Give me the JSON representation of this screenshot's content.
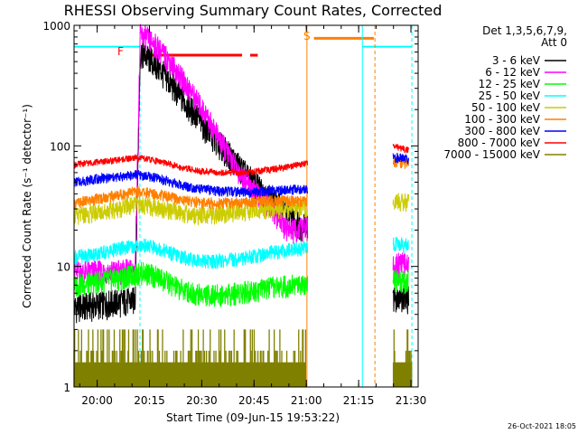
{
  "chart_data": {
    "type": "line",
    "title": "RHESSI Observing Summary Count Rates, Corrected",
    "xlabel": "Start Time (09-Jun-15 19:53:22)",
    "ylabel": "Corrected Count Rate (s⁻¹ detector⁻¹)",
    "yscale": "log",
    "ylim": [
      1,
      1000
    ],
    "xlim_minutes_after_start": [
      0,
      98.7
    ],
    "x_tick_labels": [
      "20:00",
      "20:15",
      "20:30",
      "20:45",
      "21:00",
      "21:15",
      "21:30"
    ],
    "x_tick_minutes": [
      6.63,
      21.63,
      36.63,
      51.63,
      66.63,
      81.63,
      96.63
    ],
    "y_tick_labels": [
      "1",
      "10",
      "100",
      "1000"
    ],
    "y_tick_values": [
      1,
      10,
      100,
      1000
    ],
    "legend_header_line1": "Det 1,3,5,6,7,9,",
    "legend_header_line2": "Att 0",
    "footer_date": "26-Oct-2021 18:05",
    "flag_labels": {
      "flare": "F",
      "saa": "S"
    },
    "series": [
      {
        "name": "3 - 6 keV",
        "color": "#000000",
        "points": [
          [
            0,
            4.6
          ],
          [
            5,
            4.8
          ],
          [
            10,
            5.0
          ],
          [
            15,
            5.2
          ],
          [
            17.5,
            5.3
          ],
          [
            19,
            600
          ],
          [
            22,
            520
          ],
          [
            25,
            420
          ],
          [
            30,
            270
          ],
          [
            35,
            180
          ],
          [
            40,
            118
          ],
          [
            45,
            82
          ],
          [
            50,
            55
          ],
          [
            55,
            40
          ],
          [
            58,
            34
          ],
          [
            62,
            26
          ],
          [
            65,
            22
          ],
          [
            67,
            23
          ]
        ],
        "points_after_gap": [
          [
            91.5,
            5.4
          ],
          [
            94,
            5.6
          ],
          [
            96,
            5.5
          ]
        ]
      },
      {
        "name": "6 - 12 keV",
        "color": "#ff00ff",
        "points": [
          [
            0,
            9.0
          ],
          [
            10,
            9.1
          ],
          [
            17.5,
            9.3
          ],
          [
            19,
            830
          ],
          [
            21,
            790
          ],
          [
            24,
            660
          ],
          [
            28,
            480
          ],
          [
            33,
            300
          ],
          [
            38,
            180
          ],
          [
            42,
            110
          ],
          [
            46,
            70
          ],
          [
            50,
            48
          ],
          [
            53,
            38
          ],
          [
            57,
            30
          ],
          [
            60,
            22
          ],
          [
            63,
            20
          ],
          [
            67,
            21
          ]
        ],
        "points_after_gap": [
          [
            91.5,
            10.2
          ],
          [
            93,
            10.6
          ],
          [
            96,
            10.4
          ]
        ]
      },
      {
        "name": "12 - 25 keV",
        "color": "#00ff00",
        "points": [
          [
            0,
            7.0
          ],
          [
            8,
            7.6
          ],
          [
            15,
            8.2
          ],
          [
            20,
            9.0
          ],
          [
            25,
            8.0
          ],
          [
            30,
            6.6
          ],
          [
            35,
            6.0
          ],
          [
            40,
            5.8
          ],
          [
            45,
            6.0
          ],
          [
            50,
            6.3
          ],
          [
            55,
            6.6
          ],
          [
            60,
            6.9
          ],
          [
            67,
            7.4
          ]
        ],
        "points_after_gap": [
          [
            91.5,
            7.8
          ],
          [
            96,
            7.6
          ]
        ]
      },
      {
        "name": "25 - 50 keV",
        "color": "#00ffff",
        "points": [
          [
            0,
            12.0
          ],
          [
            8,
            13.0
          ],
          [
            15,
            14.5
          ],
          [
            20,
            15.0
          ],
          [
            25,
            14.0
          ],
          [
            30,
            12.2
          ],
          [
            35,
            11.3
          ],
          [
            40,
            11.0
          ],
          [
            45,
            11.4
          ],
          [
            50,
            12.0
          ],
          [
            55,
            12.8
          ],
          [
            60,
            13.5
          ],
          [
            67,
            14.5
          ]
        ],
        "points_after_gap": [
          [
            91.5,
            15.5
          ],
          [
            96,
            15.0
          ]
        ]
      },
      {
        "name": "50 - 100 keV",
        "color": "#cccc00",
        "points": [
          [
            0,
            26
          ],
          [
            6,
            28
          ],
          [
            12,
            30
          ],
          [
            18,
            33
          ],
          [
            24,
            31
          ],
          [
            30,
            28
          ],
          [
            36,
            26.5
          ],
          [
            42,
            27
          ],
          [
            48,
            28.5
          ],
          [
            54,
            29.5
          ],
          [
            60,
            30
          ],
          [
            67,
            30.5
          ]
        ],
        "points_after_gap": [
          [
            91.5,
            35
          ],
          [
            96,
            34
          ]
        ]
      },
      {
        "name": "100 - 300 keV",
        "color": "#ff8000",
        "points": [
          [
            0,
            33
          ],
          [
            6,
            36
          ],
          [
            12,
            39
          ],
          [
            18,
            42
          ],
          [
            24,
            40
          ],
          [
            30,
            36
          ],
          [
            36,
            34
          ],
          [
            42,
            33.5
          ],
          [
            48,
            34
          ],
          [
            54,
            35
          ],
          [
            60,
            35
          ],
          [
            67,
            35
          ]
        ],
        "points_after_gap": [
          [
            91.5,
            74
          ],
          [
            96,
            72
          ]
        ]
      },
      {
        "name": "300 - 800 keV",
        "color": "#0000ff",
        "points": [
          [
            0,
            50
          ],
          [
            6,
            53
          ],
          [
            12,
            55
          ],
          [
            18,
            58
          ],
          [
            24,
            54
          ],
          [
            30,
            48
          ],
          [
            36,
            44
          ],
          [
            42,
            42
          ],
          [
            48,
            41.5
          ],
          [
            54,
            42
          ],
          [
            60,
            43
          ],
          [
            67,
            44
          ]
        ],
        "points_after_gap": [
          [
            91.5,
            80
          ],
          [
            96,
            78
          ]
        ]
      },
      {
        "name": "800 - 7000 keV",
        "color": "#ff0000",
        "points": [
          [
            0,
            70
          ],
          [
            6,
            73
          ],
          [
            12,
            76
          ],
          [
            18,
            80
          ],
          [
            24,
            75
          ],
          [
            30,
            67
          ],
          [
            36,
            62
          ],
          [
            42,
            60
          ],
          [
            48,
            60
          ],
          [
            54,
            62
          ],
          [
            60,
            66
          ],
          [
            67,
            72
          ]
        ],
        "points_after_gap": [
          [
            91.5,
            100
          ],
          [
            96,
            92
          ]
        ]
      },
      {
        "name": "7000 - 15000 keV",
        "color": "#808000",
        "points": [],
        "points_after_gap": []
      }
    ],
    "flare_flag_intervals_min": [
      [
        19.1,
        48.2
      ],
      [
        50.5,
        52.7
      ]
    ],
    "saa_flag_intervals_min": [
      [
        68.8,
        86.0
      ]
    ],
    "night_flag_intervals_min": [
      [
        0,
        18.9
      ],
      [
        82.7,
        96.9
      ]
    ],
    "vertical_lines": [
      {
        "minute": 18.9,
        "color": "#00ffff",
        "style": "dashed"
      },
      {
        "minute": 66.8,
        "color": "#ff8000",
        "style": "solid"
      },
      {
        "minute": 82.7,
        "color": "#00ffff",
        "style": "solid"
      },
      {
        "minute": 86.3,
        "color": "#ff8000",
        "style": "dashed"
      },
      {
        "minute": 96.9,
        "color": "#00ffff",
        "style": "dashed"
      }
    ]
  }
}
